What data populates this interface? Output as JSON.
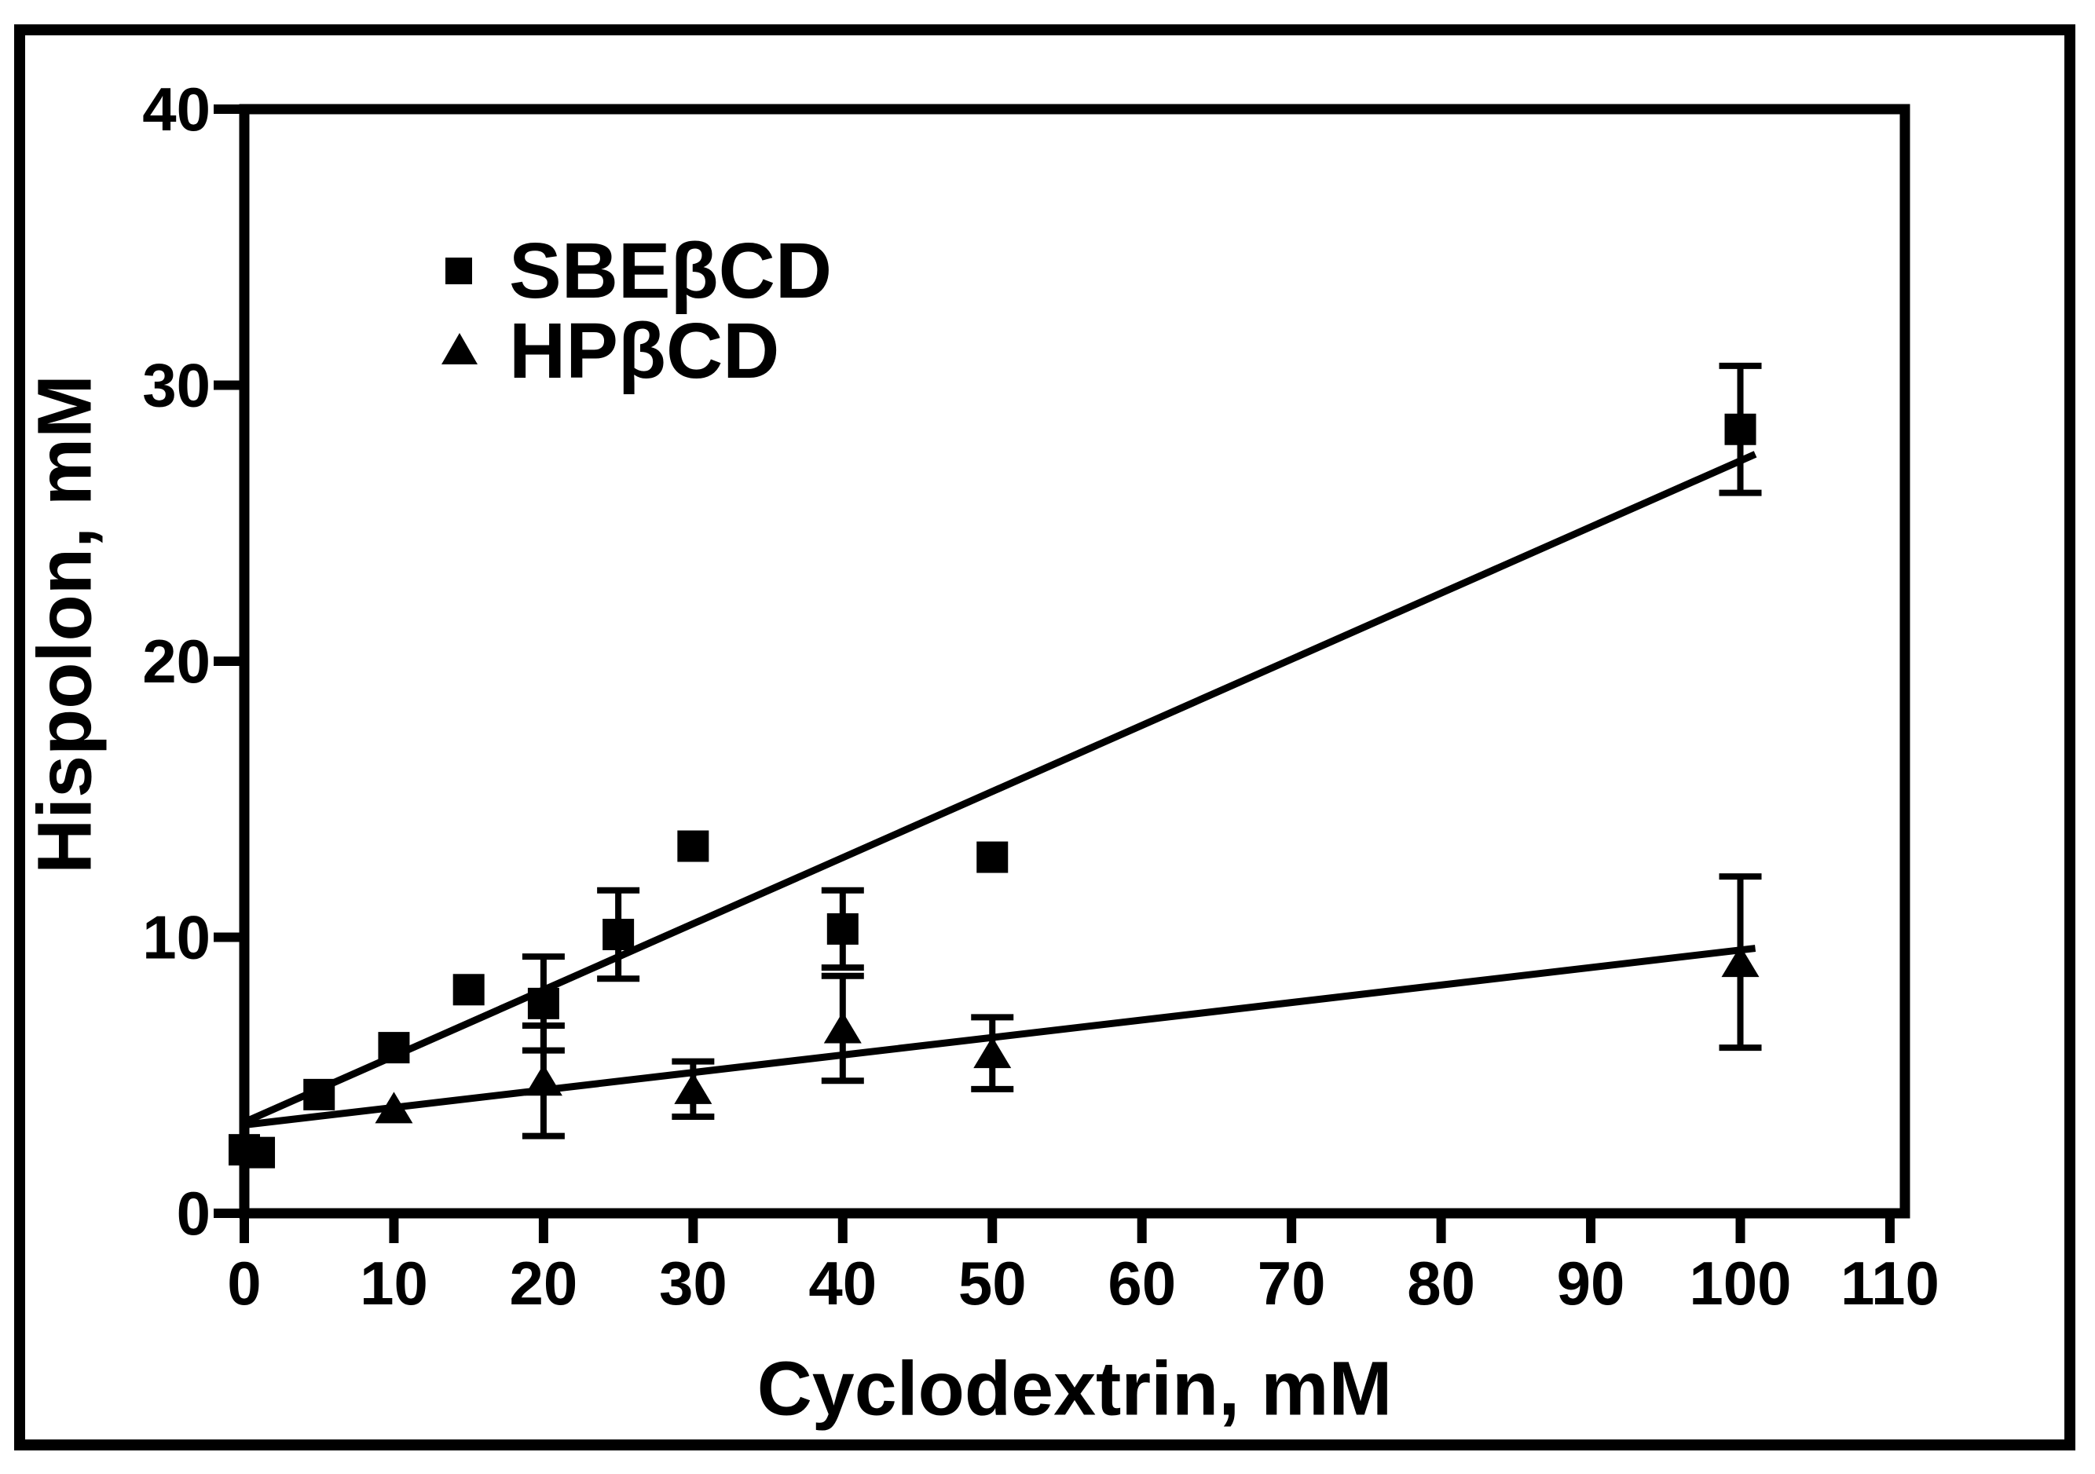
{
  "figure": {
    "background": "#ffffff",
    "ink": "#000000"
  },
  "chart_data": {
    "type": "scatter",
    "title": "",
    "xlabel": "Cyclodextrin, mM",
    "ylabel": "Hispolon, mM",
    "xlim": [
      0,
      111
    ],
    "ylim": [
      0,
      40
    ],
    "xticks": [
      0,
      10,
      20,
      30,
      40,
      50,
      60,
      70,
      80,
      90,
      100,
      110
    ],
    "yticks": [
      0,
      10,
      20,
      30,
      40
    ],
    "grid": false,
    "legend_position": "upper-left-inside",
    "series": [
      {
        "name": "SBEβCD",
        "marker": "square",
        "color": "#000000",
        "points": [
          {
            "x": 0,
            "y": 2.3
          },
          {
            "x": 1,
            "y": 2.2
          },
          {
            "x": 5,
            "y": 4.3
          },
          {
            "x": 10,
            "y": 6.0
          },
          {
            "x": 15,
            "y": 8.1
          },
          {
            "x": 20,
            "y": 7.6,
            "err": 1.7
          },
          {
            "x": 25,
            "y": 10.1,
            "err": 1.6
          },
          {
            "x": 30,
            "y": 13.3
          },
          {
            "x": 40,
            "y": 10.3,
            "err": 1.4
          },
          {
            "x": 50,
            "y": 12.9
          },
          {
            "x": 100,
            "y": 28.4,
            "err": 2.3
          }
        ],
        "fit_line": {
          "x": [
            0,
            101
          ],
          "y": [
            3.3,
            27.5
          ]
        }
      },
      {
        "name": "HPβCD",
        "marker": "triangle",
        "color": "#000000",
        "points": [
          {
            "x": 10,
            "y": 3.8
          },
          {
            "x": 20,
            "y": 4.8,
            "err": 2.0
          },
          {
            "x": 30,
            "y": 4.5,
            "err": 1.0
          },
          {
            "x": 40,
            "y": 6.7,
            "err": 1.9
          },
          {
            "x": 50,
            "y": 5.8,
            "err": 1.3
          },
          {
            "x": 100,
            "y": 9.1,
            "err": 3.1
          }
        ],
        "fit_line": {
          "x": [
            0,
            101
          ],
          "y": [
            3.2,
            9.6
          ]
        }
      }
    ]
  }
}
